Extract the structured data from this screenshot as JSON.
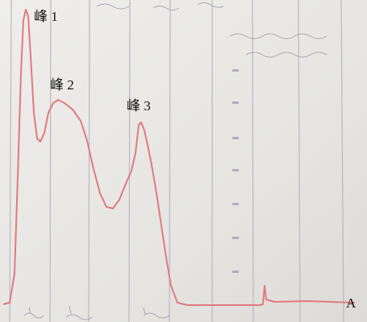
{
  "labels": {
    "peak_1": "峰 1",
    "peak_2": "峰 2",
    "peak_3": "峰 3"
  },
  "panel_label": "A"
}
